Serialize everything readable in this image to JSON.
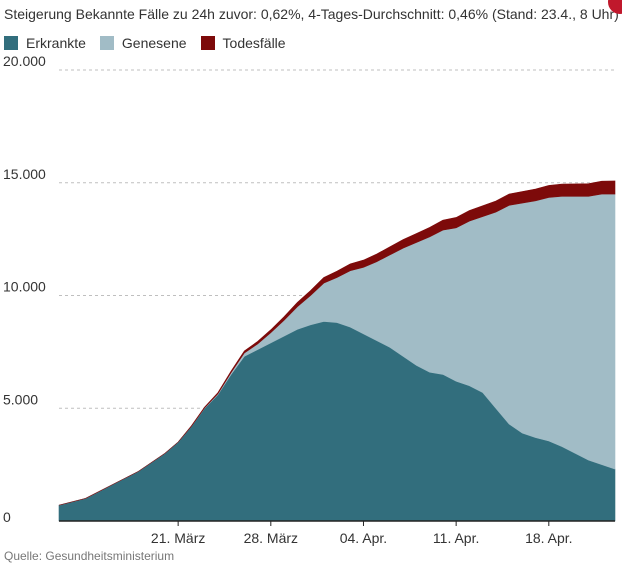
{
  "header": {
    "subtitle": "Steigerung Bekannte Fälle zu 24h zuvor: 0,62%, 4-Tages-Durchschnitt: 0,46% (Stand: 23.4., 8 Uhr)",
    "source": "Quelle: Gesundheitsministerium"
  },
  "colors": {
    "erkrankte": "#326e7d",
    "genesene": "#a1bcc6",
    "todesfaelle": "#7d0a0a",
    "grid": "#bfbfbf",
    "text": "#333333",
    "badge": "#c0182c"
  },
  "legend": [
    {
      "label": "Erkrankte",
      "color": "#326e7d"
    },
    {
      "label": "Genesene",
      "color": "#a1bcc6"
    },
    {
      "label": "Todesfälle",
      "color": "#7d0a0a"
    }
  ],
  "chart_data": {
    "type": "area",
    "stacked": true,
    "title": "",
    "xlabel": "",
    "ylabel": "",
    "x_start": "2020-03-12",
    "x_end": "2020-04-23",
    "ylim": [
      0,
      20000
    ],
    "yticks": [
      {
        "value": 0,
        "label": "0"
      },
      {
        "value": 5000,
        "label": "5.000"
      },
      {
        "value": 10000,
        "label": "10.000"
      },
      {
        "value": 15000,
        "label": "15.000"
      },
      {
        "value": 20000,
        "label": "20.000"
      }
    ],
    "xticks": [
      {
        "date": "2020-03-21",
        "label": "21. März"
      },
      {
        "date": "2020-03-28",
        "label": "28. März"
      },
      {
        "date": "2020-04-04",
        "label": "04. Apr."
      },
      {
        "date": "2020-04-11",
        "label": "11. Apr."
      },
      {
        "date": "2020-04-18",
        "label": "18. Apr."
      }
    ],
    "grid": true,
    "legend_position": "top-left",
    "x": [
      "2020-03-12",
      "2020-03-13",
      "2020-03-14",
      "2020-03-15",
      "2020-03-16",
      "2020-03-17",
      "2020-03-18",
      "2020-03-19",
      "2020-03-20",
      "2020-03-21",
      "2020-03-22",
      "2020-03-23",
      "2020-03-24",
      "2020-03-25",
      "2020-03-26",
      "2020-03-27",
      "2020-03-28",
      "2020-03-29",
      "2020-03-30",
      "2020-03-31",
      "2020-04-01",
      "2020-04-02",
      "2020-04-03",
      "2020-04-04",
      "2020-04-05",
      "2020-04-06",
      "2020-04-07",
      "2020-04-08",
      "2020-04-09",
      "2020-04-10",
      "2020-04-11",
      "2020-04-12",
      "2020-04-13",
      "2020-04-14",
      "2020-04-15",
      "2020-04-16",
      "2020-04-17",
      "2020-04-18",
      "2020-04-19",
      "2020-04-20",
      "2020-04-21",
      "2020-04-22",
      "2020-04-23"
    ],
    "series": [
      {
        "name": "Erkrankte",
        "values": [
          700,
          850,
          1000,
          1300,
          1600,
          1900,
          2200,
          2600,
          3000,
          3500,
          4200,
          5000,
          5600,
          6500,
          7300,
          7600,
          7900,
          8200,
          8500,
          8700,
          8850,
          8800,
          8600,
          8300,
          8000,
          7700,
          7300,
          6900,
          6600,
          6500,
          6200,
          6000,
          5700,
          5000,
          4300,
          3900,
          3700,
          3550,
          3300,
          3000,
          2700,
          2500,
          2300
        ]
      },
      {
        "name": "Genesene",
        "values": [
          0,
          0,
          0,
          0,
          0,
          0,
          0,
          0,
          0,
          0,
          0,
          20,
          40,
          80,
          150,
          250,
          450,
          700,
          1000,
          1300,
          1700,
          2000,
          2500,
          2950,
          3500,
          4100,
          4800,
          5450,
          6000,
          6400,
          6800,
          7300,
          7800,
          8700,
          9700,
          10200,
          10500,
          10800,
          11100,
          11400,
          11700,
          12000,
          12200
        ]
      },
      {
        "name": "Todesfälle",
        "values": [
          0,
          0,
          0,
          0,
          0,
          0,
          0,
          0,
          0,
          0,
          20,
          30,
          50,
          70,
          90,
          110,
          130,
          160,
          190,
          220,
          250,
          280,
          300,
          320,
          340,
          360,
          380,
          400,
          420,
          440,
          460,
          470,
          480,
          490,
          500,
          510,
          520,
          530,
          540,
          550,
          560,
          570,
          580
        ]
      }
    ]
  }
}
